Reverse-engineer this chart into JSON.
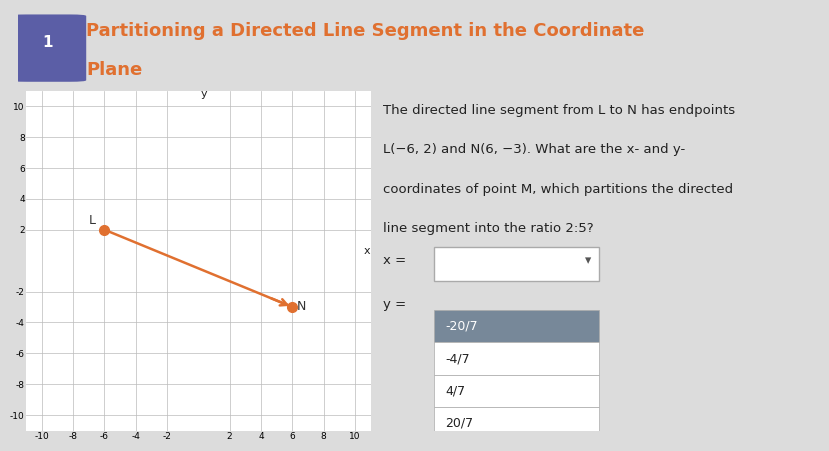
{
  "title_line1": "Partitioning a Directed Line Segment in the Coordinate",
  "title_line2": "Plane",
  "title_color": "#e07030",
  "title_fontsize": 13,
  "bg_color": "#dcdcdc",
  "header_bg": "#dcdcdc",
  "plot_bg": "#ffffff",
  "icon_color": "#5b5ea6",
  "L_point": [
    -6,
    2
  ],
  "N_point": [
    6,
    -3
  ],
  "line_color": "#e07030",
  "point_color": "#e07030",
  "axis_color": "#222222",
  "grid_color": "#bbbbbb",
  "xlim": [
    -11,
    11
  ],
  "ylim": [
    -11,
    11
  ],
  "xticks": [
    -10,
    -8,
    -6,
    -4,
    -2,
    2,
    4,
    6,
    8,
    10
  ],
  "yticks": [
    -10,
    -8,
    -6,
    -4,
    -2,
    2,
    4,
    6,
    8,
    10
  ],
  "problem_text_line1": "The directed line segment from L to N has endpoints",
  "problem_text_line2": "L(−6, 2) and N(6, −3). What are the x- and y-",
  "problem_text_line3": "coordinates of point M, which partitions the directed",
  "problem_text_line4": "line segment into the ratio 2:5?",
  "x_label": "x =",
  "y_label": "y =",
  "dropdown_items": [
    "-20/7",
    "-4/7",
    "4/7",
    "20/7"
  ],
  "dropdown_selected_bg": "#778899",
  "dropdown_bg": "#ffffff",
  "text_fontsize": 9.5,
  "small_fontsize": 9,
  "tick_fontsize": 6.5
}
